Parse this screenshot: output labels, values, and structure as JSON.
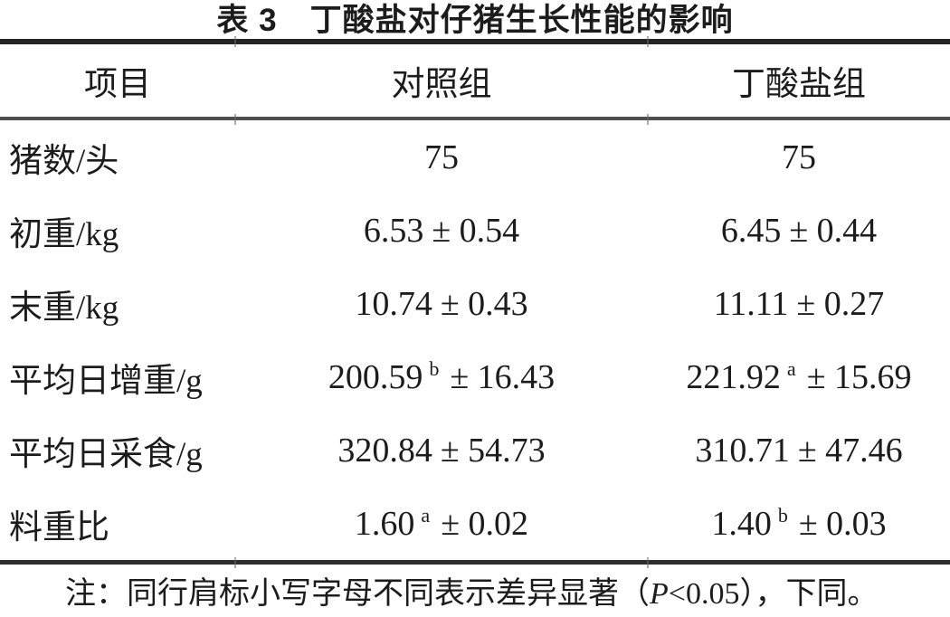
{
  "table": {
    "title": "表 3　丁酸盐对仔猪生长性能的影响",
    "header": {
      "item": "项目",
      "control": "对照组",
      "butyrate": "丁酸盐组"
    },
    "rows": [
      {
        "label": "猪数/头",
        "control": {
          "mean": "75",
          "sup": "",
          "rest": ""
        },
        "butyrate": {
          "mean": "75",
          "sup": "",
          "rest": ""
        }
      },
      {
        "label": "初重/kg",
        "control": {
          "mean": "6.53",
          "sup": "",
          "rest": "± 0.54"
        },
        "butyrate": {
          "mean": "6.45",
          "sup": "",
          "rest": "± 0.44"
        }
      },
      {
        "label": "末重/kg",
        "control": {
          "mean": "10.74",
          "sup": "",
          "rest": "± 0.43"
        },
        "butyrate": {
          "mean": "11.11",
          "sup": "",
          "rest": "± 0.27"
        }
      },
      {
        "label": "平均日增重/g",
        "control": {
          "mean": "200.59",
          "sup": "b",
          "rest": "± 16.43"
        },
        "butyrate": {
          "mean": "221.92",
          "sup": "a",
          "rest": "± 15.69"
        }
      },
      {
        "label": "平均日采食/g",
        "control": {
          "mean": "320.84",
          "sup": "",
          "rest": "± 54.73"
        },
        "butyrate": {
          "mean": "310.71",
          "sup": "",
          "rest": "± 47.46"
        }
      },
      {
        "label": "料重比",
        "control": {
          "mean": "1.60",
          "sup": "a",
          "rest": "± 0.02"
        },
        "butyrate": {
          "mean": "1.40",
          "sup": "b",
          "rest": "± 0.03"
        }
      }
    ],
    "note": {
      "prefix": "注：同行肩标小写字母不同表示差异显著（",
      "p": "P",
      "suffix": "<0.05），下同。"
    }
  },
  "colors": {
    "background": "#ffffff",
    "text": "#1c1c1c",
    "rule_dark": "#242424",
    "rule_mid": "#4f4f4f"
  }
}
